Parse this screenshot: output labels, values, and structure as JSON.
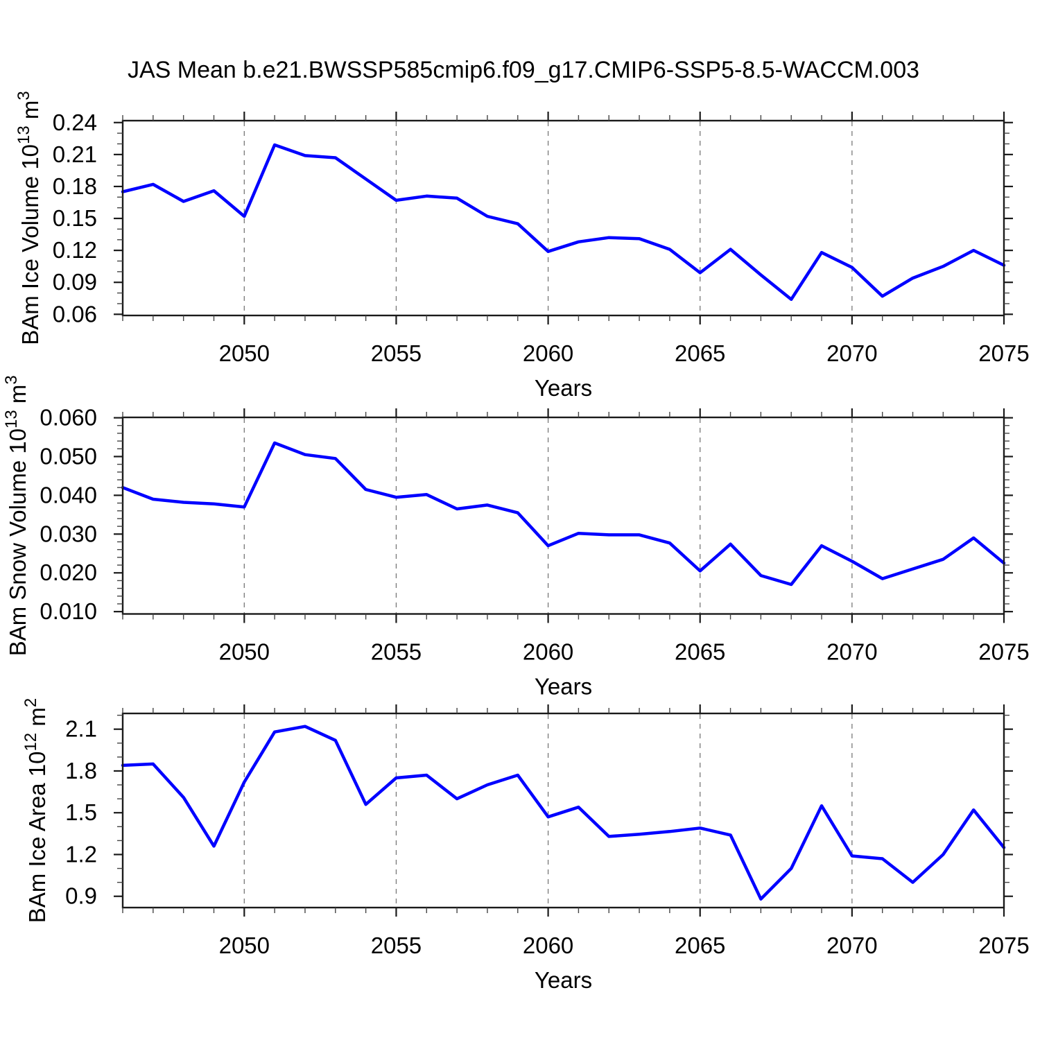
{
  "title": "JAS Mean b.e21.BWSSP585cmip6.f09_g17.CMIP6-SSP5-8.5-WACCM.003",
  "colors": {
    "line": "#0000ff",
    "axis": "#1a1a1a",
    "minor_tick": "#444444",
    "grid": "#777777",
    "text": "#000000",
    "background": "#ffffff"
  },
  "x_axis": {
    "label": "Years",
    "min": 2046,
    "max": 2075,
    "major_step": 5,
    "minor_step": 1,
    "major_tick_years": [
      2050,
      2055,
      2060,
      2065,
      2070,
      2075
    ],
    "major_tick_labels": [
      "2050",
      "2055",
      "2060",
      "2065",
      "2070",
      "2075"
    ],
    "grid_years": [
      2050,
      2055,
      2060,
      2065,
      2070
    ]
  },
  "years": [
    2046,
    2047,
    2048,
    2049,
    2050,
    2051,
    2052,
    2053,
    2054,
    2055,
    2056,
    2057,
    2058,
    2059,
    2060,
    2061,
    2062,
    2063,
    2064,
    2065,
    2066,
    2067,
    2068,
    2069,
    2070,
    2071,
    2072,
    2073,
    2074,
    2075
  ],
  "chart_data": [
    {
      "type": "line",
      "name": "ice-volume",
      "title": "",
      "xlabel": "Years",
      "ylabel": "BAm Ice Volume 10^13 m^3",
      "ylabel_segments": [
        {
          "t": "BAm Ice Volume 10"
        },
        {
          "t": "13",
          "sup": true
        },
        {
          "t": " m"
        },
        {
          "t": "3",
          "sup": true
        }
      ],
      "y_ticks": [
        0.06,
        0.09,
        0.12,
        0.15,
        0.18,
        0.21,
        0.24
      ],
      "y_tick_labels": [
        "0.06",
        "0.09",
        "0.12",
        "0.15",
        "0.18",
        "0.21",
        "0.24"
      ],
      "y_minor_step": 0.01,
      "ylim": [
        0.0589,
        0.2418
      ],
      "grid": "x-dashed",
      "legend": "none",
      "x": [
        2046,
        2047,
        2048,
        2049,
        2050,
        2051,
        2052,
        2053,
        2054,
        2055,
        2056,
        2057,
        2058,
        2059,
        2060,
        2061,
        2062,
        2063,
        2064,
        2065,
        2066,
        2067,
        2068,
        2069,
        2070,
        2071,
        2072,
        2073,
        2074,
        2075
      ],
      "values": [
        0.175,
        0.182,
        0.166,
        0.176,
        0.152,
        0.219,
        0.209,
        0.207,
        0.187,
        0.167,
        0.171,
        0.169,
        0.152,
        0.145,
        0.119,
        0.128,
        0.132,
        0.131,
        0.121,
        0.099,
        0.121,
        0.097,
        0.074,
        0.118,
        0.104,
        0.077,
        0.094,
        0.105,
        0.12,
        0.106
      ]
    },
    {
      "type": "line",
      "name": "snow-volume",
      "title": "",
      "xlabel": "Years",
      "ylabel": "BAm Snow Volume 10^13 m^3",
      "ylabel_segments": [
        {
          "t": "BAm Snow Volume 10"
        },
        {
          "t": "13",
          "sup": true
        },
        {
          "t": " m"
        },
        {
          "t": "3",
          "sup": true
        }
      ],
      "y_ticks": [
        0.01,
        0.02,
        0.03,
        0.04,
        0.05,
        0.06
      ],
      "y_tick_labels": [
        "0.010",
        "0.020",
        "0.030",
        "0.040",
        "0.050",
        "0.060"
      ],
      "y_minor_step": 0.002,
      "ylim": [
        0.0094,
        0.0601
      ],
      "grid": "x-dashed",
      "legend": "none",
      "x": [
        2046,
        2047,
        2048,
        2049,
        2050,
        2051,
        2052,
        2053,
        2054,
        2055,
        2056,
        2057,
        2058,
        2059,
        2060,
        2061,
        2062,
        2063,
        2064,
        2065,
        2066,
        2067,
        2068,
        2069,
        2070,
        2071,
        2072,
        2073,
        2074,
        2075
      ],
      "values": [
        0.042,
        0.039,
        0.0382,
        0.0378,
        0.037,
        0.0535,
        0.0505,
        0.0495,
        0.0415,
        0.0395,
        0.0402,
        0.0365,
        0.0375,
        0.0355,
        0.027,
        0.0302,
        0.0298,
        0.0298,
        0.0277,
        0.0205,
        0.0274,
        0.0193,
        0.017,
        0.027,
        0.023,
        0.0185,
        0.021,
        0.0235,
        0.029,
        0.0225
      ]
    },
    {
      "type": "line",
      "name": "ice-area",
      "title": "",
      "xlabel": "Years",
      "ylabel": "BAm Ice Area 10^12 m^2",
      "ylabel_segments": [
        {
          "t": "BAm Ice Area 10"
        },
        {
          "t": "12",
          "sup": true
        },
        {
          "t": " m"
        },
        {
          "t": "2",
          "sup": true
        }
      ],
      "y_ticks": [
        0.9,
        1.2,
        1.5,
        1.8,
        2.1
      ],
      "y_tick_labels": [
        "0.9",
        "1.2",
        "1.5",
        "1.8",
        "2.1"
      ],
      "y_minor_step": 0.1,
      "ylim": [
        0.819,
        2.213
      ],
      "grid": "x-dashed",
      "legend": "none",
      "x": [
        2046,
        2047,
        2048,
        2049,
        2050,
        2051,
        2052,
        2053,
        2054,
        2055,
        2056,
        2057,
        2058,
        2059,
        2060,
        2061,
        2062,
        2063,
        2064,
        2065,
        2066,
        2067,
        2068,
        2069,
        2070,
        2071,
        2072,
        2073,
        2074,
        2075
      ],
      "values": [
        1.84,
        1.85,
        1.61,
        1.26,
        1.72,
        2.08,
        2.12,
        2.02,
        1.56,
        1.75,
        1.77,
        1.6,
        1.7,
        1.77,
        1.47,
        1.54,
        1.33,
        1.345,
        1.365,
        1.39,
        1.34,
        0.88,
        1.1,
        1.55,
        1.19,
        1.17,
        1.0,
        1.2,
        1.52,
        1.25
      ]
    }
  ]
}
